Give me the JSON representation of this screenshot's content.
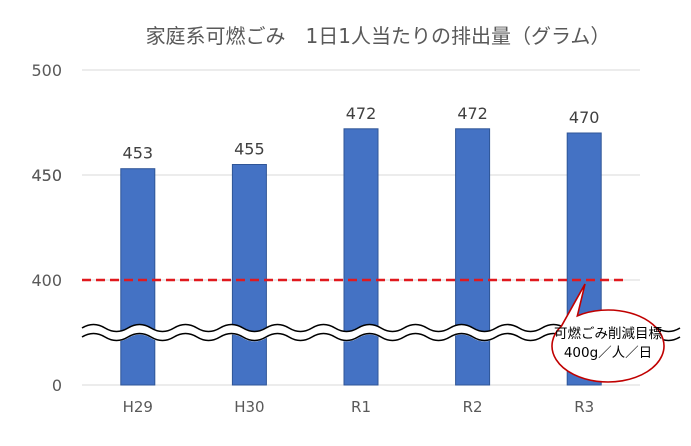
{
  "chart_data": {
    "type": "bar",
    "title": "家庭系可燃ごみ　1日1人当たりの排出量（グラム）",
    "categories": [
      "H29",
      "H30",
      "R1",
      "R2",
      "R3"
    ],
    "values": [
      453,
      455,
      472,
      472,
      470
    ],
    "yticks": [
      "500",
      "450",
      "400",
      "0"
    ],
    "ylim": [
      0,
      500
    ],
    "axis_break": "between 0 and 400",
    "grid": true,
    "target_line": {
      "value": 400,
      "color": "#E0191E",
      "style": "dashed"
    },
    "callout": {
      "line1": "可燃ごみ削減目標",
      "line2": "400g／人／日",
      "border_color": "#C00000"
    },
    "colors": {
      "bar": "#4472C4",
      "bar_edge": "#2F5597",
      "grid": "#D9D9D9",
      "text": "#595959"
    }
  }
}
